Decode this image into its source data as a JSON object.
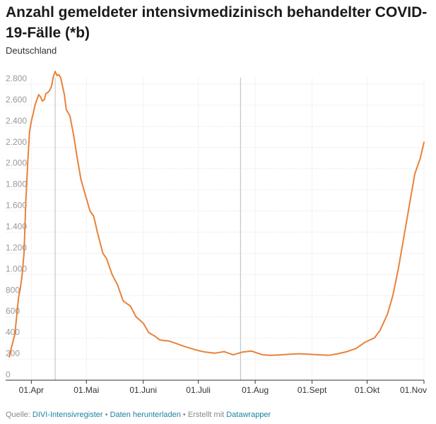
{
  "header": {
    "title": "Anzahl gemeldeter intensivmedizinisch behandelter COVID-19-Fälle (*b)",
    "subtitle": "Deutschland"
  },
  "footer": {
    "source_label": "Quelle:",
    "source_link": "DIVI-Intensivregister",
    "separator1": "•",
    "download_link": "Daten herunterladen",
    "separator2": "• Erstellt mit",
    "tool_link": "Datawrapper"
  },
  "colors": {
    "line": "#e8823a",
    "grid": "#e6e6e6",
    "axis": "#333333",
    "marker": "#bbbbbb"
  },
  "chart_data": {
    "type": "line",
    "ylim": [
      0,
      2900
    ],
    "y_ticks": [
      0,
      200,
      400,
      600,
      800,
      1000,
      1200,
      1400,
      1600,
      1800,
      2000,
      2200,
      2400,
      2600,
      2800
    ],
    "y_tick_labels": [
      "0",
      "200",
      "400",
      "600",
      "800",
      "1.000",
      "1.200",
      "1.400",
      "1.600",
      "1.800",
      "2.000",
      "2.200",
      "2.400",
      "2.600",
      "2.800"
    ],
    "xlim": [
      "2020-03-18",
      "2020-11-01"
    ],
    "x_ticks": [
      "2020-04-01",
      "2020-05-01",
      "2020-06-01",
      "2020-07-01",
      "2020-08-01",
      "2020-09-01",
      "2020-10-01",
      "2020-11-01"
    ],
    "x_tick_labels": [
      "01.Apr",
      "01.Mai",
      "01.Juni",
      "01.Juli",
      "01.Aug",
      "01.Sept",
      "01.Okt",
      "01.Nov"
    ],
    "vertical_markers": [
      "2020-04-14",
      "2020-07-24"
    ],
    "series": [
      {
        "x": [
          "2020-03-20",
          "2020-03-21",
          "2020-03-23",
          "2020-03-25",
          "2020-03-26",
          "2020-03-27",
          "2020-03-28",
          "2020-03-29",
          "2020-03-30",
          "2020-03-31",
          "2020-04-01",
          "2020-04-02",
          "2020-04-03",
          "2020-04-04",
          "2020-04-05",
          "2020-04-06",
          "2020-04-07",
          "2020-04-08",
          "2020-04-09",
          "2020-04-10",
          "2020-04-11",
          "2020-04-12",
          "2020-04-13",
          "2020-04-14",
          "2020-04-15",
          "2020-04-16",
          "2020-04-17",
          "2020-04-18",
          "2020-04-19",
          "2020-04-20",
          "2020-04-22",
          "2020-04-24",
          "2020-04-26",
          "2020-04-28",
          "2020-04-30",
          "2020-05-03",
          "2020-05-05",
          "2020-05-07",
          "2020-05-10",
          "2020-05-12",
          "2020-05-15",
          "2020-05-18",
          "2020-05-21",
          "2020-05-25",
          "2020-05-28",
          "2020-06-01",
          "2020-06-04",
          "2020-06-07",
          "2020-06-10",
          "2020-06-15",
          "2020-06-20",
          "2020-06-25",
          "2020-07-01",
          "2020-07-05",
          "2020-07-10",
          "2020-07-15",
          "2020-07-20",
          "2020-07-25",
          "2020-07-30",
          "2020-08-05",
          "2020-08-10",
          "2020-08-15",
          "2020-08-20",
          "2020-08-25",
          "2020-08-30",
          "2020-09-05",
          "2020-09-10",
          "2020-09-15",
          "2020-09-20",
          "2020-09-25",
          "2020-09-30",
          "2020-10-05",
          "2020-10-08",
          "2020-10-12",
          "2020-10-15",
          "2020-10-18",
          "2020-10-21",
          "2020-10-24",
          "2020-10-27",
          "2020-10-30",
          "2020-11-01"
        ],
        "values": [
          220,
          300,
          430,
          780,
          870,
          1000,
          1200,
          1700,
          2050,
          2350,
          2450,
          2520,
          2600,
          2650,
          2700,
          2680,
          2640,
          2650,
          2710,
          2720,
          2740,
          2780,
          2870,
          2920,
          2880,
          2890,
          2860,
          2780,
          2700,
          2560,
          2500,
          2320,
          2100,
          1900,
          1780,
          1600,
          1550,
          1400,
          1200,
          1150,
          1000,
          900,
          750,
          700,
          600,
          540,
          450,
          420,
          380,
          370,
          340,
          310,
          280,
          265,
          255,
          270,
          240,
          265,
          275,
          240,
          235,
          240,
          245,
          250,
          245,
          240,
          235,
          250,
          270,
          300,
          360,
          400,
          470,
          620,
          800,
          1050,
          1350,
          1650,
          1950,
          2100,
          2250
        ]
      }
    ]
  }
}
